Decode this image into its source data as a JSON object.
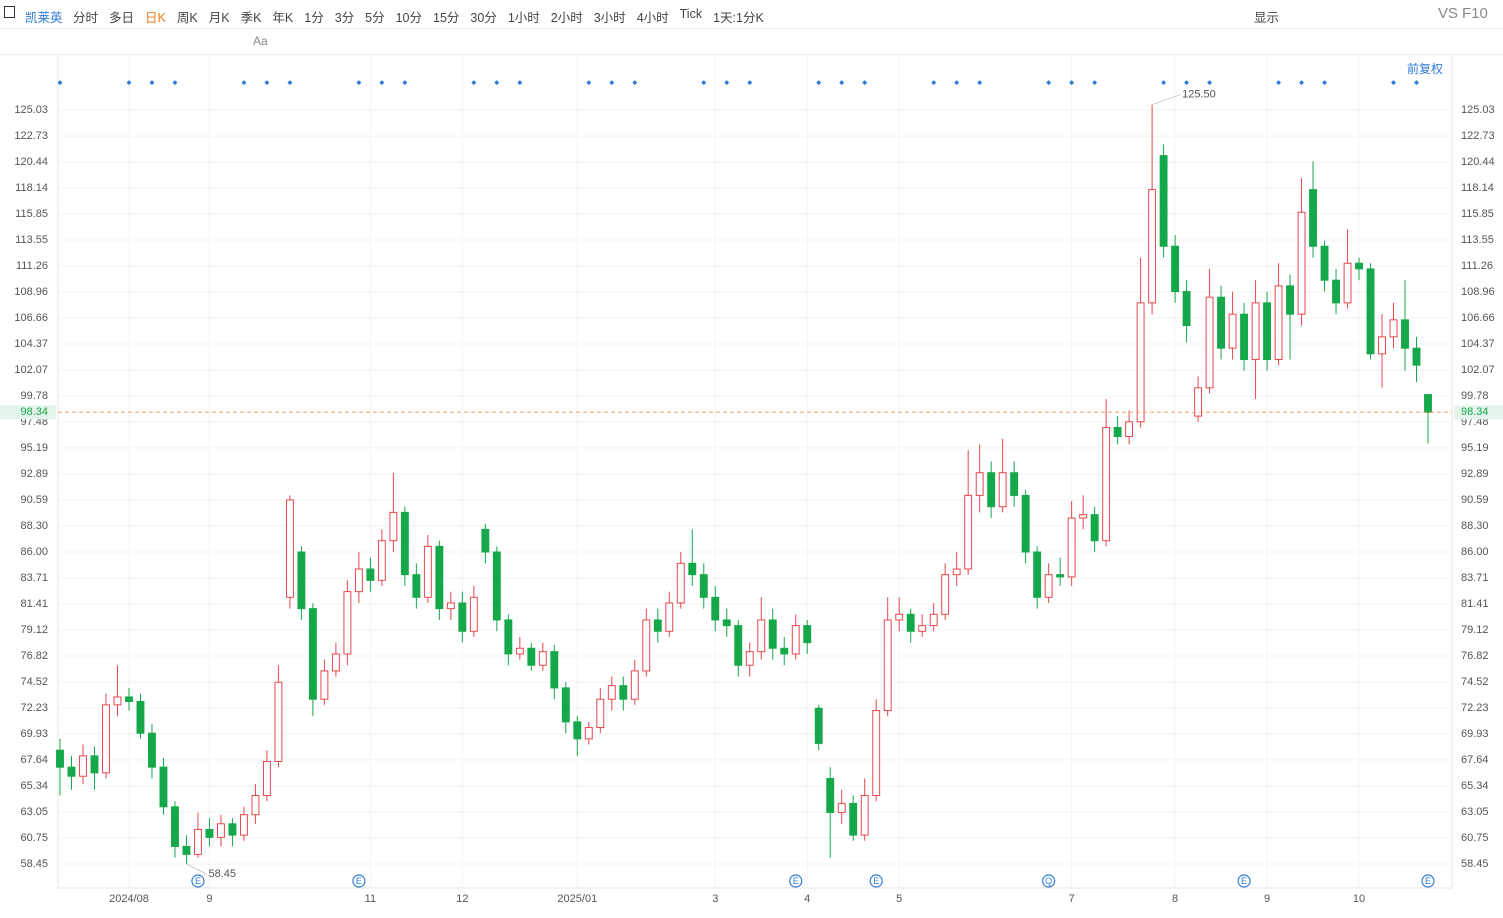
{
  "toolbar": {
    "stock": "凯莱英",
    "periods": [
      "分时",
      "多日",
      "日K",
      "周K",
      "月K",
      "季K",
      "年K",
      "1分",
      "3分",
      "5分",
      "10分",
      "15分",
      "30分",
      "1小时",
      "2小时",
      "3小时",
      "4小时",
      "Tick",
      "1天:1分K"
    ],
    "active": "日K",
    "display": "显示",
    "vs": "VS",
    "f10": "F10",
    "font_tool": "Aa",
    "adjust": "前复权"
  },
  "chart_data": {
    "type": "candlestick",
    "up_color": "#e8474b",
    "down_color": "#14a84a",
    "categories": [
      null,
      null,
      null,
      null,
      null,
      null,
      "2024/08",
      null,
      null,
      null,
      null,
      null,
      null,
      "9",
      null,
      null,
      null,
      null,
      null,
      null,
      null,
      null,
      null,
      null,
      null,
      null,
      null,
      "11",
      null,
      null,
      null,
      null,
      null,
      null,
      null,
      "12",
      null,
      null,
      null,
      null,
      null,
      null,
      null,
      null,
      null,
      "2025/01",
      null,
      null,
      null,
      null,
      null,
      null,
      null,
      null,
      null,
      null,
      null,
      "3",
      null,
      null,
      null,
      null,
      null,
      null,
      null,
      "4",
      null,
      null,
      null,
      null,
      null,
      null,
      null,
      "5",
      null,
      null,
      null,
      null,
      null,
      null,
      null,
      null,
      null,
      null,
      null,
      null,
      null,
      null,
      "7",
      null,
      null,
      null,
      null,
      null,
      null,
      null,
      null,
      "8",
      null,
      null,
      null,
      null,
      null,
      null,
      null,
      "9",
      null,
      null,
      null,
      null,
      null,
      null,
      null,
      "10",
      null,
      null,
      null,
      null,
      null,
      null
    ],
    "open": [
      68.5,
      67.0,
      66.2,
      68.0,
      66.5,
      72.5,
      73.2,
      72.8,
      70.0,
      67.0,
      63.5,
      60.0,
      59.3,
      61.5,
      60.8,
      62.0,
      61.0,
      62.8,
      64.5,
      67.5,
      82.0,
      86.0,
      81.0,
      73.0,
      75.5,
      77.0,
      82.5,
      84.5,
      83.5,
      87.0,
      89.5,
      84.0,
      82.0,
      86.5,
      81.0,
      81.5,
      79.0,
      88.0,
      86.0,
      80.0,
      77.0,
      77.5,
      76.0,
      77.2,
      74.0,
      71.0,
      69.5,
      70.5,
      73.0,
      74.2,
      73.0,
      75.5,
      80.0,
      79.0,
      81.5,
      85.0,
      84.0,
      82.0,
      80.0,
      79.5,
      76.0,
      77.2,
      80.0,
      77.5,
      77.0,
      79.5,
      72.2,
      66.0,
      63.0,
      63.8,
      61.0,
      64.5,
      72.0,
      80.0,
      80.5,
      79.0,
      79.5,
      80.5,
      84.0,
      84.5,
      91.0,
      93.0,
      90.0,
      93.0,
      91.0,
      86.0,
      82.0,
      84.0,
      83.8,
      89.0,
      89.3,
      87.0,
      97.0,
      96.2,
      97.5,
      108.0,
      121.0,
      113.0,
      109.0,
      98.0,
      100.5,
      108.5,
      104.0,
      107.0,
      103.0,
      108.0,
      103.0,
      109.5,
      107.0,
      118.0,
      113.0,
      110.0,
      108.0,
      111.5,
      111.0,
      103.5,
      105.0,
      106.5,
      104.0,
      99.9
    ],
    "high": [
      69.5,
      68.0,
      69.0,
      68.8,
      73.5,
      76.0,
      74.0,
      73.5,
      70.8,
      67.8,
      64.0,
      61.0,
      63.0,
      62.5,
      62.8,
      62.5,
      63.5,
      65.5,
      68.5,
      76.0,
      91.0,
      86.5,
      81.5,
      76.5,
      78.0,
      83.5,
      86.0,
      85.5,
      88.0,
      93.0,
      90.0,
      85.0,
      87.5,
      87.0,
      82.5,
      82.5,
      83.0,
      88.5,
      86.5,
      80.5,
      78.5,
      78.0,
      78.0,
      77.8,
      74.5,
      71.5,
      71.0,
      74.0,
      75.0,
      75.0,
      76.5,
      81.0,
      81.0,
      82.5,
      86.0,
      88.0,
      85.0,
      83.0,
      81.0,
      80.0,
      78.0,
      82.0,
      81.0,
      78.5,
      80.5,
      80.0,
      72.5,
      67.0,
      65.0,
      64.5,
      66.0,
      73.0,
      82.0,
      82.0,
      81.0,
      80.5,
      81.5,
      85.0,
      86.0,
      95.0,
      95.5,
      94.0,
      96.0,
      94.0,
      91.5,
      86.5,
      85.0,
      85.5,
      90.5,
      91.0,
      90.0,
      99.5,
      98.0,
      98.5,
      112.0,
      125.5,
      122.0,
      114.0,
      110.0,
      101.5,
      111.0,
      109.5,
      109.0,
      108.0,
      110.0,
      109.0,
      111.5,
      110.5,
      119.0,
      120.5,
      113.5,
      111.0,
      114.5,
      112.0,
      111.5,
      107.0,
      108.0,
      110.0,
      105.0,
      99.9
    ],
    "low": [
      64.5,
      65.0,
      65.5,
      65.0,
      66.0,
      71.5,
      72.0,
      69.5,
      66.0,
      62.8,
      59.0,
      58.45,
      59.0,
      60.0,
      60.0,
      60.0,
      60.5,
      62.0,
      64.0,
      67.0,
      81.0,
      80.0,
      71.5,
      72.5,
      75.0,
      76.0,
      81.5,
      82.5,
      83.0,
      86.0,
      83.0,
      81.0,
      81.5,
      80.0,
      80.0,
      78.0,
      78.5,
      85.0,
      79.0,
      76.0,
      76.5,
      75.5,
      75.5,
      73.0,
      70.0,
      68.0,
      69.0,
      70.0,
      72.0,
      72.0,
      72.5,
      75.0,
      78.0,
      78.5,
      81.0,
      83.0,
      81.0,
      79.0,
      78.5,
      75.0,
      75.0,
      76.5,
      76.5,
      76.0,
      76.5,
      77.0,
      68.5,
      59.0,
      62.0,
      60.5,
      60.5,
      64.0,
      71.5,
      79.0,
      78.0,
      78.5,
      79.0,
      80.0,
      83.0,
      84.0,
      89.5,
      89.0,
      89.5,
      90.0,
      85.0,
      81.0,
      81.5,
      83.0,
      83.0,
      88.0,
      86.0,
      86.5,
      95.5,
      95.5,
      97.0,
      107.0,
      112.0,
      108.0,
      104.5,
      97.5,
      100.0,
      103.0,
      103.0,
      102.0,
      99.5,
      102.0,
      102.5,
      103.0,
      106.0,
      112.0,
      109.0,
      107.0,
      107.5,
      110.0,
      103.0,
      100.5,
      104.0,
      102.0,
      101.0,
      95.6
    ],
    "close": [
      67.0,
      66.2,
      68.0,
      66.5,
      72.5,
      73.2,
      72.8,
      70.0,
      67.0,
      63.5,
      60.0,
      59.3,
      61.5,
      60.8,
      62.0,
      61.0,
      62.8,
      64.5,
      67.5,
      74.5,
      90.6,
      81.0,
      73.0,
      75.5,
      77.0,
      82.5,
      84.5,
      83.5,
      87.0,
      89.5,
      84.0,
      82.0,
      86.5,
      81.0,
      81.5,
      79.0,
      82.0,
      86.0,
      80.0,
      77.0,
      77.5,
      76.0,
      77.2,
      74.0,
      71.0,
      69.5,
      70.5,
      73.0,
      74.2,
      73.0,
      75.5,
      80.0,
      79.0,
      81.5,
      85.0,
      84.0,
      82.0,
      80.0,
      79.5,
      76.0,
      77.2,
      80.0,
      77.5,
      77.0,
      79.5,
      78.0,
      69.1,
      63.0,
      63.8,
      61.0,
      64.5,
      72.0,
      80.0,
      80.5,
      79.0,
      79.5,
      80.5,
      84.0,
      84.5,
      91.0,
      93.0,
      90.0,
      93.0,
      91.0,
      86.0,
      82.0,
      84.0,
      83.8,
      89.0,
      89.3,
      87.0,
      97.0,
      96.2,
      97.5,
      108.0,
      118.0,
      113.0,
      109.0,
      106.0,
      100.5,
      108.5,
      104.0,
      107.0,
      103.0,
      108.0,
      103.0,
      109.5,
      107.0,
      116.0,
      113.0,
      110.0,
      108.0,
      111.5,
      111.0,
      103.5,
      105.0,
      106.5,
      104.0,
      102.5,
      98.34
    ],
    "ylim": [
      56.33,
      129.8
    ],
    "yticks": [
      58.45,
      60.75,
      63.05,
      65.34,
      67.64,
      69.93,
      72.23,
      74.52,
      76.82,
      79.12,
      81.41,
      83.71,
      {
        "value": 86,
        "label": "86.00"
      },
      {
        "value": 88.3,
        "label": "88.30"
      },
      90.59,
      92.89,
      95.19,
      97.48,
      99.78,
      102.07,
      104.37,
      106.66,
      108.96,
      111.26,
      113.55,
      115.85,
      118.14,
      120.44,
      122.73,
      125.03
    ],
    "last_price": 98.34,
    "annotations": [
      {
        "value": 125.5,
        "label": "125.50"
      },
      {
        "value": 58.45,
        "label": "58.45"
      }
    ],
    "events": [
      {
        "x": 12,
        "label": "E"
      },
      {
        "x": 26,
        "label": "E"
      },
      {
        "x": 64,
        "label": "E"
      },
      {
        "x": 71,
        "label": "E"
      },
      {
        "x": 86,
        "label": "Q"
      },
      {
        "x": 103,
        "label": "E"
      },
      {
        "x": 119,
        "label": "E"
      }
    ]
  }
}
